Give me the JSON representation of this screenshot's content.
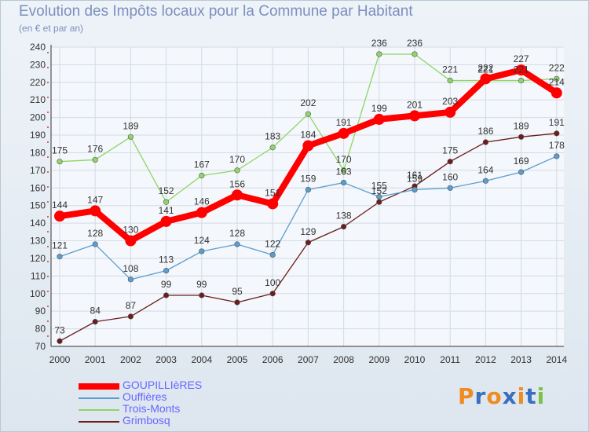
{
  "title": "Evolution des Impôts locaux pour la Commune par Habitant",
  "subtitle": "(en € et par an)",
  "chart_data": {
    "type": "line",
    "categories": [
      "2000",
      "2001",
      "2002",
      "2003",
      "2004",
      "2005",
      "2006",
      "2007",
      "2008",
      "2009",
      "2010",
      "2011",
      "2012",
      "2013",
      "2014"
    ],
    "ylim": [
      70,
      240
    ],
    "yticks": [
      70,
      80,
      90,
      100,
      110,
      120,
      130,
      140,
      150,
      160,
      170,
      180,
      190,
      200,
      210,
      220,
      230,
      240
    ],
    "grid": true,
    "legend_position": "bottom-left",
    "series": [
      {
        "name": "GOUPILLIèRES",
        "color": "#ff0000",
        "values": [
          144,
          147,
          130,
          141,
          146,
          156,
          151,
          184,
          191,
          199,
          201,
          203,
          222,
          227,
          214
        ],
        "labels": [
          "144",
          "147",
          "130",
          "141",
          "146",
          "156",
          "151",
          "184",
          "191",
          "199",
          "201",
          "203",
          "222",
          "227",
          "214"
        ]
      },
      {
        "name": "Ouffières",
        "color": "#5a9ed1",
        "values": [
          121,
          128,
          108,
          113,
          124,
          128,
          122,
          159,
          163,
          155,
          159,
          160,
          164,
          169,
          178
        ],
        "labels": [
          "121",
          "128",
          "108",
          "113",
          "124",
          "128",
          "122",
          "159",
          "163",
          "155",
          "159",
          "160",
          "164",
          "169",
          "178"
        ]
      },
      {
        "name": "Trois-Monts",
        "color": "#8ed667",
        "values": [
          175,
          176,
          189,
          152,
          167,
          170,
          183,
          202,
          170,
          236,
          236,
          221,
          221,
          221,
          222
        ],
        "labels": [
          "175",
          "176",
          "189",
          "152",
          "167",
          "170",
          "183",
          "202",
          "170",
          "236",
          "236",
          "221",
          "221",
          "221",
          "222"
        ]
      },
      {
        "name": "Grimbosq",
        "color": "#6b1c1c",
        "values": [
          73,
          84,
          87,
          99,
          99,
          95,
          100,
          129,
          138,
          152,
          161,
          175,
          186,
          189,
          191
        ],
        "labels": [
          "73",
          "84",
          "87",
          "99",
          "99",
          "95",
          "100",
          "129",
          "138",
          "152",
          "161",
          "175",
          "186",
          "189",
          "191"
        ]
      }
    ]
  },
  "logo": {
    "letters": [
      "P",
      "r",
      "o",
      "x",
      "i",
      "t",
      "i"
    ],
    "colors": [
      "#f08c1e",
      "#3a6fbf",
      "#f08c1e",
      "#3a6fbf",
      "#f08c1e",
      "#3a6fbf",
      "#7cc242"
    ]
  }
}
